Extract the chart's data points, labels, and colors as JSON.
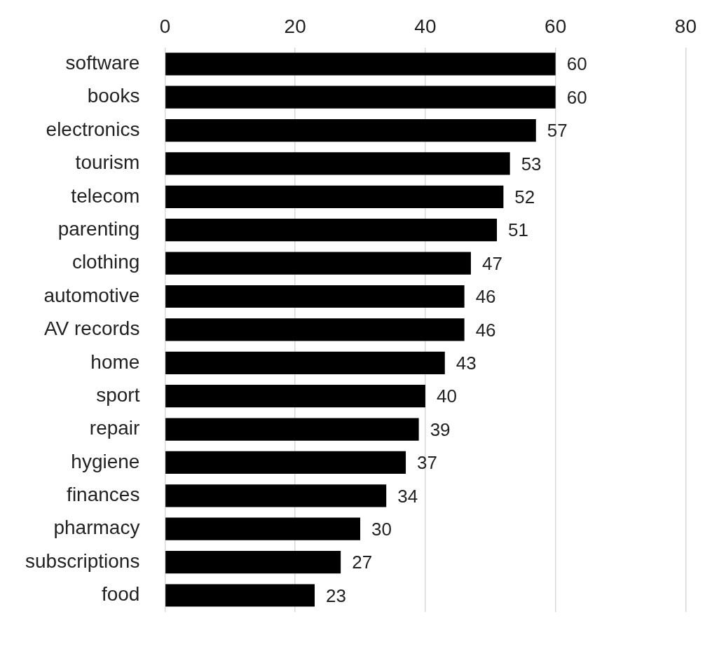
{
  "chart_data": {
    "type": "bar",
    "orientation": "horizontal",
    "categories": [
      "software",
      "books",
      "electronics",
      "tourism",
      "telecom",
      "parenting",
      "clothing",
      "automotive",
      "AV records",
      "home",
      "sport",
      "repair",
      "hygiene",
      "finances",
      "pharmacy",
      "subscriptions",
      "food"
    ],
    "values": [
      60,
      60,
      57,
      53,
      52,
      51,
      47,
      46,
      46,
      43,
      40,
      39,
      37,
      34,
      30,
      27,
      23
    ],
    "color": "#000000",
    "xlim": [
      0,
      80
    ],
    "xticks": [
      0,
      20,
      40,
      60,
      80
    ],
    "grid": "x",
    "data_labels": true,
    "legend": false
  }
}
